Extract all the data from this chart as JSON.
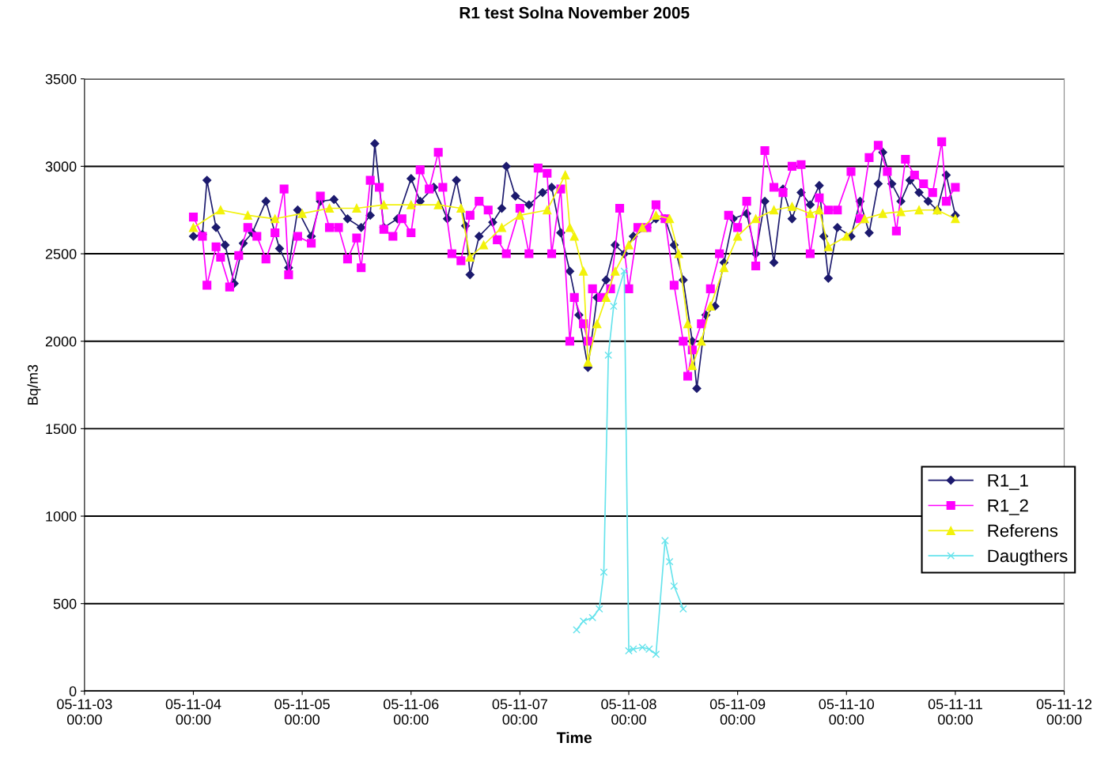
{
  "chart_data": {
    "type": "line",
    "title": "R1 test Solna November 2005",
    "xlabel": "Time",
    "ylabel": "Bq/m3",
    "xlim": [
      "2005-11-03T00:00",
      "2005-11-12T00:00"
    ],
    "xticks": [
      {
        "value": "2005-11-03T00:00",
        "label": "05-11-03\n00:00"
      },
      {
        "value": "2005-11-04T00:00",
        "label": "05-11-04\n00:00"
      },
      {
        "value": "2005-11-05T00:00",
        "label": "05-11-05\n00:00"
      },
      {
        "value": "2005-11-06T00:00",
        "label": "05-11-06\n00:00"
      },
      {
        "value": "2005-11-07T00:00",
        "label": "05-11-07\n00:00"
      },
      {
        "value": "2005-11-08T00:00",
        "label": "05-11-08\n00:00"
      },
      {
        "value": "2005-11-09T00:00",
        "label": "05-11-09\n00:00"
      },
      {
        "value": "2005-11-10T00:00",
        "label": "05-11-10\n00:00"
      },
      {
        "value": "2005-11-11T00:00",
        "label": "05-11-11\n00:00"
      },
      {
        "value": "2005-11-12T00:00",
        "label": "05-11-12\n00:00"
      }
    ],
    "ylim": [
      0,
      3500
    ],
    "yticks": [
      0,
      500,
      1000,
      1500,
      2000,
      2500,
      3000,
      3500
    ],
    "grid": "y",
    "legend": "right",
    "line_style": "solid",
    "series": [
      {
        "name": "R1_1",
        "color": "#1c1a6e",
        "marker": "diamond",
        "x": [
          "2005-11-04T00:00",
          "2005-11-04T02:00",
          "2005-11-04T03:00",
          "2005-11-04T05:00",
          "2005-11-04T07:00",
          "2005-11-04T09:00",
          "2005-11-04T11:00",
          "2005-11-04T13:00",
          "2005-11-04T16:00",
          "2005-11-04T19:00",
          "2005-11-04T21:00",
          "2005-11-04T23:00",
          "2005-11-05T02:00",
          "2005-11-05T04:00",
          "2005-11-05T07:00",
          "2005-11-05T10:00",
          "2005-11-05T13:00",
          "2005-11-05T15:00",
          "2005-11-05T16:00",
          "2005-11-05T18:00",
          "2005-11-05T21:00",
          "2005-11-06T00:00",
          "2005-11-06T02:00",
          "2005-11-06T05:00",
          "2005-11-06T08:00",
          "2005-11-06T10:00",
          "2005-11-06T12:00",
          "2005-11-06T13:00",
          "2005-11-06T15:00",
          "2005-11-06T18:00",
          "2005-11-06T20:00",
          "2005-11-06T21:00",
          "2005-11-06T23:00",
          "2005-11-07T02:00",
          "2005-11-07T05:00",
          "2005-11-07T07:00",
          "2005-11-07T09:00",
          "2005-11-07T11:00",
          "2005-11-07T13:00",
          "2005-11-07T15:00",
          "2005-11-07T17:00",
          "2005-11-07T19:00",
          "2005-11-07T21:00",
          "2005-11-07T23:00",
          "2005-11-08T01:00",
          "2005-11-08T04:00",
          "2005-11-08T06:00",
          "2005-11-08T08:00",
          "2005-11-08T10:00",
          "2005-11-08T12:00",
          "2005-11-08T14:00",
          "2005-11-08T15:00",
          "2005-11-08T17:00",
          "2005-11-08T19:00",
          "2005-11-08T21:00",
          "2005-11-08T23:00",
          "2005-11-09T02:00",
          "2005-11-09T04:00",
          "2005-11-09T06:00",
          "2005-11-09T08:00",
          "2005-11-09T10:00",
          "2005-11-09T12:00",
          "2005-11-09T14:00",
          "2005-11-09T16:00",
          "2005-11-09T18:00",
          "2005-11-09T19:00",
          "2005-11-09T20:00",
          "2005-11-09T22:00",
          "2005-11-10T01:00",
          "2005-11-10T03:00",
          "2005-11-10T05:00",
          "2005-11-10T07:00",
          "2005-11-10T08:00",
          "2005-11-10T10:00",
          "2005-11-10T12:00",
          "2005-11-10T14:00",
          "2005-11-10T16:00",
          "2005-11-10T18:00",
          "2005-11-10T20:00",
          "2005-11-10T22:00",
          "2005-11-11T00:00"
        ],
        "values": [
          2600,
          2610,
          2920,
          2650,
          2550,
          2330,
          2560,
          2620,
          2800,
          2530,
          2420,
          2750,
          2600,
          2800,
          2810,
          2700,
          2650,
          2720,
          3130,
          2650,
          2700,
          2930,
          2800,
          2880,
          2700,
          2920,
          2660,
          2380,
          2600,
          2680,
          2760,
          3000,
          2830,
          2780,
          2850,
          2880,
          2620,
          2400,
          2150,
          1850,
          2250,
          2350,
          2550,
          2500,
          2600,
          2650,
          2700,
          2700,
          2550,
          2350,
          2000,
          1730,
          2150,
          2200,
          2450,
          2700,
          2730,
          2500,
          2800,
          2450,
          2870,
          2700,
          2850,
          2780,
          2890,
          2600,
          2360,
          2650,
          2600,
          2800,
          2620,
          2900,
          3080,
          2900,
          2800,
          2920,
          2850,
          2800,
          2750,
          2950,
          2720
        ]
      },
      {
        "name": "R1_2",
        "color": "#ff00ff",
        "marker": "square",
        "x": [
          "2005-11-04T00:00",
          "2005-11-04T02:00",
          "2005-11-04T03:00",
          "2005-11-04T05:00",
          "2005-11-04T06:00",
          "2005-11-04T08:00",
          "2005-11-04T10:00",
          "2005-11-04T12:00",
          "2005-11-04T14:00",
          "2005-11-04T16:00",
          "2005-11-04T18:00",
          "2005-11-04T20:00",
          "2005-11-04T21:00",
          "2005-11-04T23:00",
          "2005-11-05T02:00",
          "2005-11-05T04:00",
          "2005-11-05T06:00",
          "2005-11-05T08:00",
          "2005-11-05T10:00",
          "2005-11-05T12:00",
          "2005-11-05T13:00",
          "2005-11-05T15:00",
          "2005-11-05T17:00",
          "2005-11-05T18:00",
          "2005-11-05T20:00",
          "2005-11-05T22:00",
          "2005-11-06T00:00",
          "2005-11-06T02:00",
          "2005-11-06T04:00",
          "2005-11-06T06:00",
          "2005-11-06T07:00",
          "2005-11-06T09:00",
          "2005-11-06T11:00",
          "2005-11-06T13:00",
          "2005-11-06T15:00",
          "2005-11-06T17:00",
          "2005-11-06T19:00",
          "2005-11-06T21:00",
          "2005-11-07T00:00",
          "2005-11-07T02:00",
          "2005-11-07T04:00",
          "2005-11-07T06:00",
          "2005-11-07T07:00",
          "2005-11-07T09:00",
          "2005-11-07T11:00",
          "2005-11-07T12:00",
          "2005-11-07T14:00",
          "2005-11-07T15:00",
          "2005-11-07T16:00",
          "2005-11-07T18:00",
          "2005-11-07T20:00",
          "2005-11-07T22:00",
          "2005-11-08T00:00",
          "2005-11-08T02:00",
          "2005-11-08T04:00",
          "2005-11-08T06:00",
          "2005-11-08T08:00",
          "2005-11-08T10:00",
          "2005-11-08T12:00",
          "2005-11-08T13:00",
          "2005-11-08T14:00",
          "2005-11-08T16:00",
          "2005-11-08T18:00",
          "2005-11-08T20:00",
          "2005-11-08T22:00",
          "2005-11-09T00:00",
          "2005-11-09T02:00",
          "2005-11-09T04:00",
          "2005-11-09T06:00",
          "2005-11-09T08:00",
          "2005-11-09T10:00",
          "2005-11-09T12:00",
          "2005-11-09T14:00",
          "2005-11-09T16:00",
          "2005-11-09T18:00",
          "2005-11-09T20:00",
          "2005-11-09T22:00",
          "2005-11-10T01:00",
          "2005-11-10T03:00",
          "2005-11-10T05:00",
          "2005-11-10T07:00",
          "2005-11-10T09:00",
          "2005-11-10T11:00",
          "2005-11-10T13:00",
          "2005-11-10T15:00",
          "2005-11-10T17:00",
          "2005-11-10T19:00",
          "2005-11-10T21:00",
          "2005-11-10T22:00",
          "2005-11-11T00:00"
        ],
        "values": [
          2710,
          2600,
          2320,
          2540,
          2480,
          2310,
          2490,
          2650,
          2600,
          2470,
          2620,
          2870,
          2380,
          2600,
          2560,
          2830,
          2650,
          2650,
          2470,
          2590,
          2420,
          2920,
          2880,
          2640,
          2600,
          2700,
          2620,
          2980,
          2870,
          3080,
          2880,
          2500,
          2460,
          2720,
          2800,
          2750,
          2580,
          2500,
          2760,
          2500,
          2990,
          2960,
          2500,
          2870,
          2000,
          2250,
          2100,
          2000,
          2300,
          2250,
          2300,
          2760,
          2300,
          2650,
          2650,
          2780,
          2700,
          2320,
          2000,
          1800,
          1950,
          2100,
          2300,
          2500,
          2720,
          2650,
          2800,
          2430,
          3090,
          2880,
          2850,
          3000,
          3010,
          2500,
          2820,
          2750,
          2750,
          2970,
          2700,
          3050,
          3120,
          2970,
          2630,
          3040,
          2950,
          2900,
          2850,
          3140,
          2800,
          2880
        ]
      },
      {
        "name": "Referens",
        "color": "#f2f20a",
        "marker": "triangle",
        "x": [
          "2005-11-04T00:00",
          "2005-11-04T06:00",
          "2005-11-04T12:00",
          "2005-11-04T18:00",
          "2005-11-05T00:00",
          "2005-11-05T06:00",
          "2005-11-05T12:00",
          "2005-11-05T18:00",
          "2005-11-06T00:00",
          "2005-11-06T06:00",
          "2005-11-06T11:00",
          "2005-11-06T13:00",
          "2005-11-06T16:00",
          "2005-11-06T20:00",
          "2005-11-07T00:00",
          "2005-11-07T06:00",
          "2005-11-07T10:00",
          "2005-11-07T11:00",
          "2005-11-07T12:00",
          "2005-11-07T14:00",
          "2005-11-07T15:00",
          "2005-11-07T17:00",
          "2005-11-07T19:00",
          "2005-11-07T21:00",
          "2005-11-08T00:00",
          "2005-11-08T03:00",
          "2005-11-08T06:00",
          "2005-11-08T09:00",
          "2005-11-08T11:00",
          "2005-11-08T13:00",
          "2005-11-08T14:00",
          "2005-11-08T16:00",
          "2005-11-08T18:00",
          "2005-11-08T21:00",
          "2005-11-09T00:00",
          "2005-11-09T04:00",
          "2005-11-09T08:00",
          "2005-11-09T12:00",
          "2005-11-09T16:00",
          "2005-11-09T18:00",
          "2005-11-09T20:00",
          "2005-11-10T00:00",
          "2005-11-10T04:00",
          "2005-11-10T08:00",
          "2005-11-10T12:00",
          "2005-11-10T16:00",
          "2005-11-10T20:00",
          "2005-11-11T00:00"
        ],
        "values": [
          2650,
          2750,
          2720,
          2700,
          2730,
          2760,
          2760,
          2780,
          2780,
          2780,
          2760,
          2480,
          2550,
          2650,
          2720,
          2750,
          2950,
          2650,
          2600,
          2400,
          1880,
          2100,
          2250,
          2400,
          2550,
          2650,
          2720,
          2700,
          2500,
          2100,
          1860,
          2000,
          2200,
          2420,
          2600,
          2700,
          2750,
          2770,
          2730,
          2750,
          2540,
          2600,
          2700,
          2730,
          2740,
          2750,
          2750,
          2700
        ]
      },
      {
        "name": "Daugthers",
        "color": "#66e3ec",
        "marker": "cross",
        "x": [
          "2005-11-07T12:30",
          "2005-11-07T14:00",
          "2005-11-07T16:00",
          "2005-11-07T17:30",
          "2005-11-07T18:30",
          "2005-11-07T19:30",
          "2005-11-07T20:40",
          "2005-11-07T23:00",
          "2005-11-08T00:00",
          "2005-11-08T01:00",
          "2005-11-08T03:00",
          "2005-11-08T04:30",
          "2005-11-08T06:00",
          "2005-11-08T08:00",
          "2005-11-08T09:00",
          "2005-11-08T10:00",
          "2005-11-08T12:00"
        ],
        "values": [
          350,
          400,
          420,
          470,
          680,
          1920,
          2200,
          2400,
          230,
          240,
          250,
          240,
          210,
          860,
          740,
          600,
          470
        ]
      }
    ]
  }
}
